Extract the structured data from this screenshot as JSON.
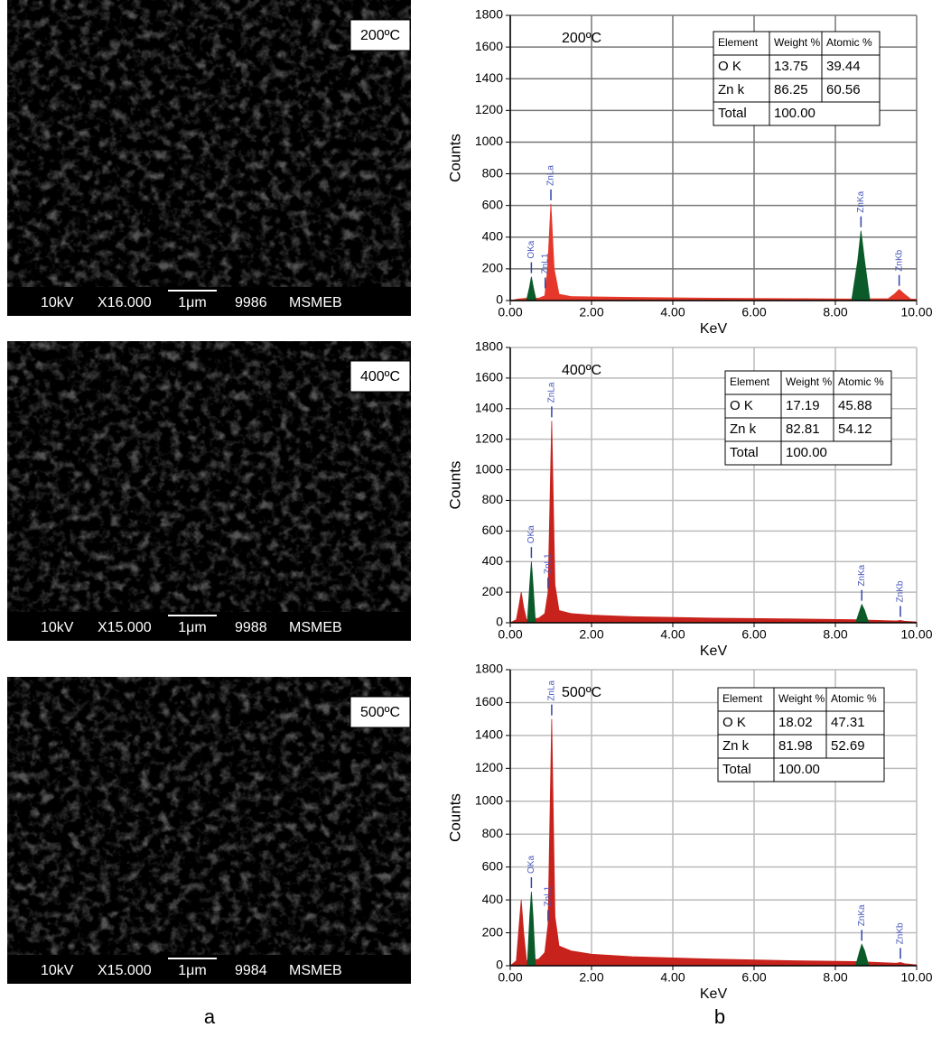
{
  "sem_images": [
    {
      "label": "200ºC",
      "voltage": "10kV",
      "magnification": "X16.000",
      "scale": "1μm",
      "id": "9986",
      "lab": "MSMEB"
    },
    {
      "label": "400ºC",
      "voltage": "10kV",
      "magnification": "X15.000",
      "scale": "1μm",
      "id": "9988",
      "lab": "MSMEB"
    },
    {
      "label": "500ºC",
      "voltage": "10kV",
      "magnification": "X15.000",
      "scale": "1μm",
      "id": "9984",
      "lab": "MSMEB"
    }
  ],
  "panel_labels": [
    "a",
    "b"
  ],
  "chart_data": [
    {
      "type": "spectrum",
      "annotation": "200ºC",
      "x_label": "KeV",
      "y_label": "Counts",
      "xlim": [
        0,
        10
      ],
      "ylim": [
        0,
        1800
      ],
      "xticks": [
        {
          "value": 0,
          "label": "0.00"
        },
        {
          "value": 2,
          "label": "2.00"
        },
        {
          "value": 4,
          "label": "4.00"
        },
        {
          "value": 6,
          "label": "6.00"
        },
        {
          "value": 8,
          "label": "8.00"
        },
        {
          "value": 10,
          "label": "10.00"
        }
      ],
      "yticks": [
        0,
        200,
        400,
        600,
        800,
        1000,
        1200,
        1400,
        1600,
        1800
      ],
      "grid": true,
      "grid_color": "#777777",
      "series": [
        {
          "color": "#e5382a",
          "x": [
            0,
            0.2,
            0.4,
            0.7,
            0.85,
            0.92,
            1.0,
            1.08,
            1.2,
            1.5,
            3,
            5,
            7,
            8.3,
            9.3,
            9.45,
            9.57,
            9.7,
            9.85,
            10
          ],
          "values": [
            0,
            10,
            15,
            15,
            30,
            200,
            610,
            200,
            40,
            25,
            20,
            15,
            12,
            10,
            12,
            40,
            70,
            40,
            10,
            8
          ]
        },
        {
          "color": "#0b5a2a",
          "x": [
            0.4,
            0.47,
            0.52,
            0.57,
            0.64
          ],
          "values": [
            0,
            80,
            150,
            80,
            0
          ]
        },
        {
          "color": "#0b5a2a",
          "x": [
            8.4,
            8.55,
            8.63,
            8.72,
            8.85
          ],
          "values": [
            0,
            250,
            440,
            250,
            0
          ]
        }
      ],
      "peaks": [
        {
          "label": "OKa",
          "x": 0.52
        },
        {
          "label": "ZnL1",
          "x": 0.86
        },
        {
          "label": "ZnLa",
          "x": 1.0
        },
        {
          "label": "ZnKa",
          "x": 8.63
        },
        {
          "label": "ZnKb",
          "x": 9.57
        }
      ],
      "table": {
        "header": [
          "Element",
          "Weight %",
          "Atomic %"
        ],
        "rows": [
          [
            "O K",
            "13.75",
            "39.44"
          ],
          [
            "Zn k",
            "86.25",
            "60.56"
          ],
          [
            "Total",
            "100.00",
            ""
          ]
        ]
      }
    },
    {
      "type": "spectrum",
      "annotation": "400ºC",
      "x_label": "KeV",
      "y_label": "Counts",
      "xlim": [
        0,
        10
      ],
      "ylim": [
        0,
        1800
      ],
      "xticks": [
        {
          "value": 0,
          "label": "0.00"
        },
        {
          "value": 2,
          "label": "2.00"
        },
        {
          "value": 4,
          "label": "4.00"
        },
        {
          "value": 6,
          "label": "6.00"
        },
        {
          "value": 8,
          "label": "8.00"
        },
        {
          "value": 10,
          "label": "10.00"
        }
      ],
      "yticks": [
        0,
        200,
        400,
        600,
        800,
        1000,
        1200,
        1400,
        1600,
        1800
      ],
      "grid": true,
      "grid_color": "#bbbbbb",
      "series": [
        {
          "color": "#c8221c",
          "x": [
            0,
            0.15,
            0.22,
            0.27,
            0.33,
            0.4,
            0.7,
            0.85,
            0.93,
            1.02,
            1.1,
            1.2,
            1.5,
            2,
            3,
            5,
            7,
            8.5,
            9.5,
            9.6,
            9.7,
            10
          ],
          "values": [
            0,
            20,
            120,
            200,
            100,
            20,
            30,
            60,
            200,
            1320,
            250,
            80,
            60,
            50,
            40,
            30,
            25,
            20,
            12,
            15,
            10,
            5
          ]
        },
        {
          "color": "#0b5a2a",
          "x": [
            0.42,
            0.48,
            0.52,
            0.56,
            0.62
          ],
          "values": [
            0,
            250,
            400,
            250,
            0
          ]
        },
        {
          "color": "#0b5a2a",
          "x": [
            8.5,
            8.6,
            8.65,
            8.72,
            8.82
          ],
          "values": [
            0,
            80,
            120,
            80,
            0
          ]
        }
      ],
      "peaks": [
        {
          "label": "OKa",
          "x": 0.52
        },
        {
          "label": "ZnL1",
          "x": 0.93
        },
        {
          "label": "ZnLa",
          "x": 1.02
        },
        {
          "label": "ZnKa",
          "x": 8.65
        },
        {
          "label": "ZnKb",
          "x": 9.6
        }
      ],
      "table": {
        "header": [
          "Element",
          "Weight %",
          "Atomic %"
        ],
        "rows": [
          [
            "O K",
            "17.19",
            "45.88"
          ],
          [
            "Zn k",
            "82.81",
            "54.12"
          ],
          [
            "Total",
            "100.00",
            ""
          ]
        ]
      }
    },
    {
      "type": "spectrum",
      "annotation": "500ºC",
      "x_label": "KeV",
      "y_label": "Counts",
      "xlim": [
        0,
        10
      ],
      "ylim": [
        0,
        1800
      ],
      "xticks": [
        {
          "value": 0,
          "label": "0.00"
        },
        {
          "value": 2,
          "label": "2.00"
        },
        {
          "value": 4,
          "label": "4.00"
        },
        {
          "value": 6,
          "label": "6.00"
        },
        {
          "value": 8,
          "label": "8.00"
        },
        {
          "value": 10,
          "label": "10.00"
        }
      ],
      "yticks": [
        0,
        200,
        400,
        600,
        800,
        1000,
        1200,
        1400,
        1600,
        1800
      ],
      "grid": true,
      "grid_color": "#bbbbbb",
      "series": [
        {
          "color": "#c8221c",
          "x": [
            0,
            0.15,
            0.22,
            0.27,
            0.33,
            0.4,
            0.7,
            0.85,
            0.93,
            1.02,
            1.1,
            1.2,
            1.5,
            2,
            3,
            5,
            7,
            8.5,
            9.5,
            9.6,
            9.7,
            10
          ],
          "values": [
            0,
            30,
            250,
            400,
            200,
            30,
            40,
            80,
            250,
            1500,
            300,
            120,
            90,
            70,
            55,
            40,
            30,
            25,
            15,
            20,
            12,
            5
          ]
        },
        {
          "color": "#0b5a2a",
          "x": [
            0.42,
            0.48,
            0.52,
            0.56,
            0.62
          ],
          "values": [
            0,
            300,
            450,
            300,
            0
          ]
        },
        {
          "color": "#0b5a2a",
          "x": [
            8.5,
            8.6,
            8.65,
            8.72,
            8.82
          ],
          "values": [
            0,
            90,
            130,
            90,
            0
          ]
        }
      ],
      "peaks": [
        {
          "label": "OKa",
          "x": 0.52
        },
        {
          "label": "ZnL1",
          "x": 0.93
        },
        {
          "label": "ZnLa",
          "x": 1.02
        },
        {
          "label": "ZnKa",
          "x": 8.65
        },
        {
          "label": "ZnKb",
          "x": 9.6
        }
      ],
      "table": {
        "header": [
          "Element",
          "Weight %",
          "Atomic %"
        ],
        "rows": [
          [
            "O K",
            "18.02",
            "47.31"
          ],
          [
            "Zn k",
            "81.98",
            "52.69"
          ],
          [
            "Total",
            "100.00",
            ""
          ]
        ]
      }
    }
  ]
}
